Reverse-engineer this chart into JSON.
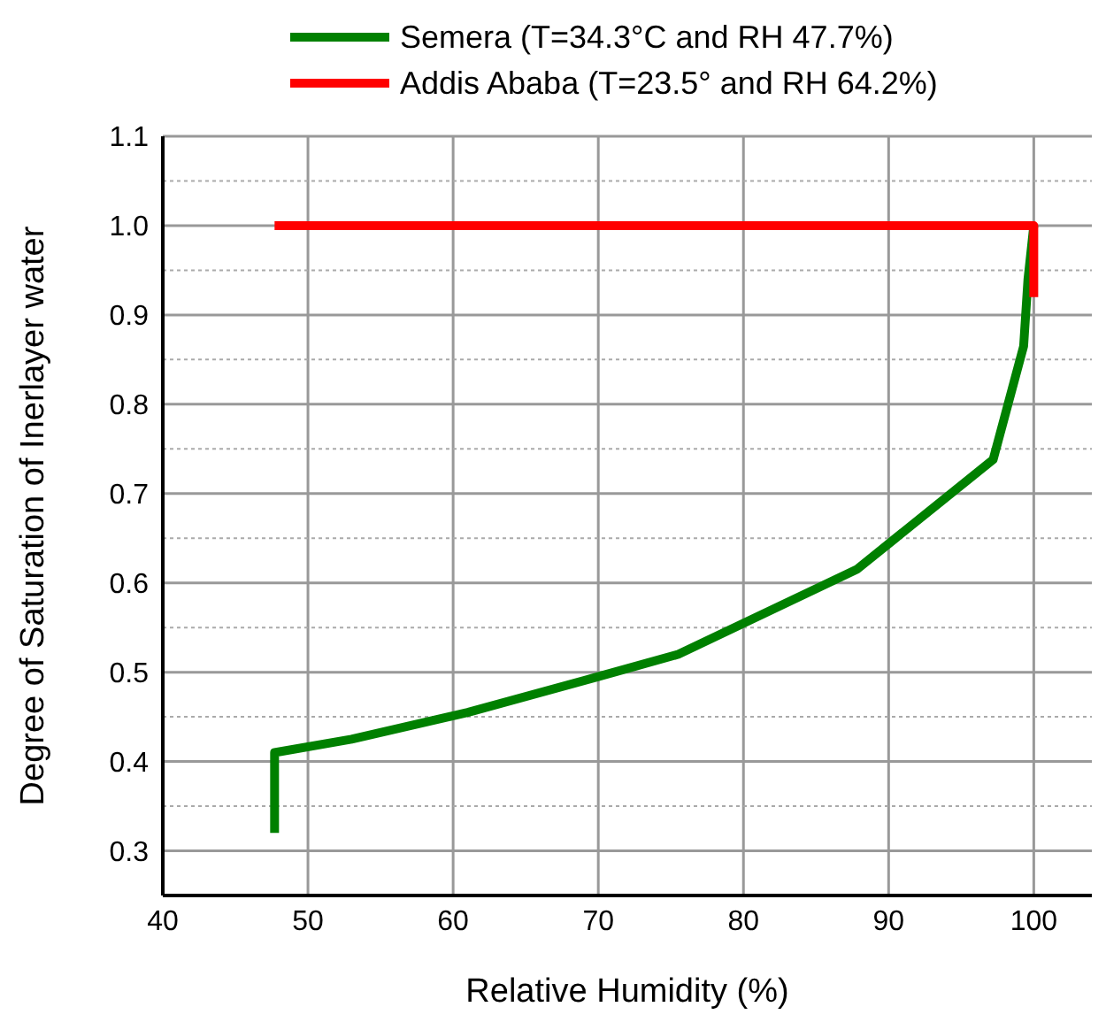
{
  "chart_data": {
    "type": "line",
    "xlabel": "Relative Humidity (%)",
    "ylabel": "Degree of Saturation of Inerlayer water",
    "x": [
      47.7,
      47.7,
      53,
      61,
      70,
      75.5,
      87.8,
      97.2,
      99.3,
      99.6,
      100,
      100
    ],
    "series": [
      {
        "name": "Semera (T=34.3°C and RH 47.7%)",
        "color": "#008000",
        "values": [
          0.32,
          0.41,
          0.425,
          0.455,
          0.495,
          0.52,
          0.615,
          0.738,
          0.865,
          0.94,
          1.0,
          null
        ]
      },
      {
        "name": "Addis Ababa (T=23.5° and RH 64.2%)",
        "color": "#ff0000",
        "values": [
          1.0,
          null,
          null,
          null,
          null,
          null,
          null,
          null,
          null,
          null,
          1.0,
          0.92
        ]
      }
    ],
    "xlim": [
      40,
      104
    ],
    "xticks": [
      40,
      50,
      60,
      70,
      80,
      90,
      100
    ],
    "ylim": [
      0.25,
      1.1
    ],
    "yticks": [
      0.3,
      {
        "value": 0.35,
        "label": null
      },
      0.4,
      {
        "value": 0.45,
        "label": null
      },
      0.5,
      {
        "value": 0.55,
        "label": null
      },
      0.6,
      {
        "value": 0.65,
        "label": null
      },
      0.7,
      {
        "value": 0.75,
        "label": null
      },
      0.8,
      {
        "value": 0.85,
        "label": null
      },
      0.9,
      {
        "value": 0.95,
        "label": null
      },
      {
        "value": 1,
        "label": "1.0"
      },
      {
        "value": 1.05,
        "label": null
      },
      1.1
    ],
    "grid": true,
    "legend": "top",
    "marker": "none",
    "line_style": "solid"
  }
}
